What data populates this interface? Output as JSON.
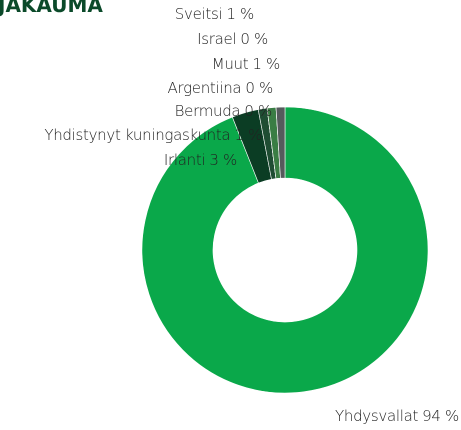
{
  "chart_data": {
    "type": "donut",
    "title": "JAKAUMA",
    "categories": [
      "Yhdysvallat",
      "Irlanti",
      "Yhdistynyt kuningaskunta",
      "Bermuda",
      "Argentiina",
      "Muut",
      "Israel",
      "Sveitsi"
    ],
    "values": [
      94,
      3,
      1,
      0,
      0,
      1,
      0,
      1
    ],
    "value_labels": [
      "94 %",
      "3 %",
      "1 %",
      "0 %",
      "0 %",
      "1 %",
      "0 %",
      "1 %"
    ],
    "colors": [
      "#0aa84a",
      "#0b3d24",
      "#1f4d33",
      "#8fb8d8",
      "#c5d94a",
      "#3a7d44",
      "#b0b0b0",
      "#555a5c"
    ]
  }
}
